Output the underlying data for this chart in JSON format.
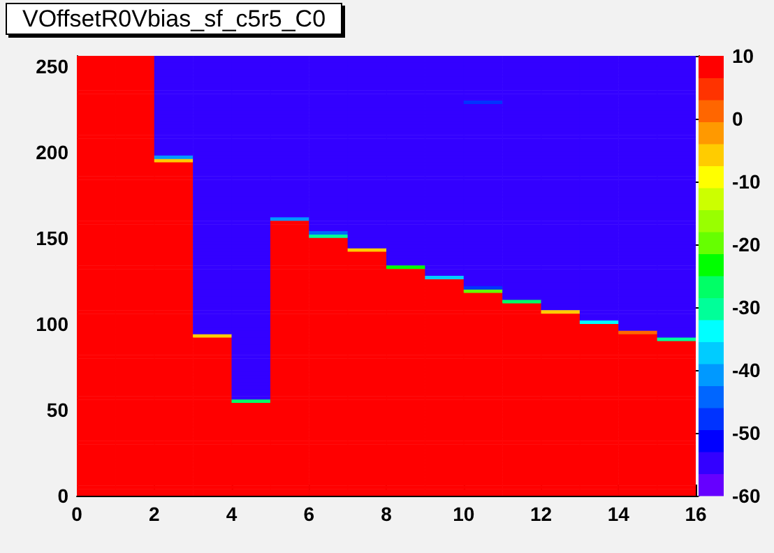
{
  "chart_data": {
    "type": "heatmap",
    "title": "VOffsetR0Vbias_sf_c5r5_C0",
    "xlim": [
      0,
      16
    ],
    "xticks": [
      0,
      2,
      4,
      6,
      8,
      10,
      12,
      14,
      16
    ],
    "ylim": [
      0,
      256
    ],
    "yticks": [
      0,
      50,
      100,
      150,
      200,
      250
    ],
    "clim": [
      -60,
      10
    ],
    "cticks": [
      -60,
      -50,
      -40,
      -30,
      -20,
      -10,
      0,
      10
    ],
    "colors": [
      "#6600ff",
      "#3300ff",
      "#0000ff",
      "#0033ff",
      "#0066ff",
      "#0099ff",
      "#00ccff",
      "#00ffff",
      "#00ff99",
      "#00ff66",
      "#00ff00",
      "#66ff00",
      "#99ff00",
      "#ccff00",
      "#ffff00",
      "#ffcc00",
      "#ff9900",
      "#ff6600",
      "#ff3300",
      "#ff0000"
    ],
    "cells": [
      [
        8,
        8,
        -55,
        -55,
        -55,
        -55,
        -55,
        -55,
        -55,
        -55,
        -55,
        -55,
        -55,
        -55,
        -55,
        -55
      ],
      [
        8,
        8,
        -55,
        -55,
        -55,
        -55,
        -55,
        -55,
        -55,
        -55,
        -55,
        -55,
        -55,
        -55,
        -55,
        -55
      ],
      [
        8,
        8,
        -55,
        -55,
        -55,
        -55,
        -55,
        -55,
        -55,
        -55,
        -55,
        -55,
        -55,
        -55,
        -55,
        -55
      ],
      [
        8,
        8,
        -55,
        -55,
        -55,
        -55,
        -55,
        -55,
        -55,
        -55,
        -55,
        -55,
        -55,
        -55,
        -55,
        -55
      ],
      [
        8,
        8,
        -55,
        -55,
        -55,
        -55,
        -55,
        -55,
        -55,
        -55,
        -55,
        -55,
        -55,
        -55,
        -55,
        -55
      ],
      [
        8,
        8,
        -55,
        -55,
        -55,
        -55,
        -55,
        -55,
        -55,
        -55,
        -55,
        -55,
        -55,
        -55,
        -55,
        -55
      ],
      [
        8,
        8,
        -55,
        -55,
        -55,
        -55,
        -55,
        -55,
        -55,
        -55,
        -55,
        -55,
        -55,
        -55,
        -55,
        -55
      ],
      [
        8,
        8,
        -55,
        -55,
        -55,
        -55,
        -55,
        -55,
        -55,
        -55,
        -55,
        -55,
        -55,
        -55,
        -55,
        -55
      ],
      [
        8,
        8,
        -55,
        -55,
        -55,
        -55,
        -55,
        -55,
        -55,
        -55,
        -55,
        -55,
        -55,
        -55,
        -55,
        -55
      ],
      [
        8,
        8,
        -55,
        -55,
        -55,
        -55,
        -55,
        -55,
        -55,
        -55,
        -55,
        -55,
        -55,
        -55,
        -55,
        -55
      ],
      [
        8,
        8,
        -55,
        -55,
        -55,
        -55,
        -55,
        -55,
        -55,
        -55,
        -55,
        -55,
        -55,
        -55,
        -55,
        -55
      ],
      [
        8,
        8,
        -55,
        -55,
        -55,
        -55,
        -55,
        -55,
        -55,
        -55,
        -55,
        -55,
        -55,
        -55,
        -55,
        -55
      ],
      [
        8,
        8,
        -55,
        -55,
        -55,
        -55,
        -55,
        -55,
        -55,
        -55,
        -55,
        -55,
        -55,
        -55,
        -55,
        -55
      ],
      [
        8,
        8,
        -55,
        -55,
        -55,
        -55,
        -55,
        -55,
        -55,
        -55,
        -48,
        -55,
        -55,
        -55,
        -55,
        -55
      ],
      [
        8,
        8,
        -55,
        -55,
        -55,
        -55,
        -55,
        -55,
        -55,
        -55,
        -55,
        -55,
        -55,
        -55,
        -55,
        -55
      ],
      [
        8,
        8,
        -55,
        -55,
        -55,
        -55,
        -55,
        -55,
        -55,
        -55,
        -55,
        -55,
        -55,
        -55,
        -55,
        -55
      ],
      [
        8,
        8,
        -55,
        -55,
        -55,
        -55,
        -55,
        -55,
        -55,
        -55,
        -55,
        -55,
        -55,
        -55,
        -55,
        -55
      ],
      [
        8,
        8,
        -55,
        -55,
        -55,
        -55,
        -55,
        -55,
        -55,
        -55,
        -55,
        -55,
        -55,
        -55,
        -55,
        -55
      ],
      [
        8,
        8,
        -55,
        -55,
        -55,
        -55,
        -55,
        -55,
        -55,
        -55,
        -55,
        -55,
        -55,
        -55,
        -55,
        -55
      ],
      [
        8,
        8,
        -55,
        -55,
        -55,
        -55,
        -55,
        -55,
        -55,
        -55,
        -55,
        -55,
        -55,
        -55,
        -55,
        -55
      ],
      [
        8,
        8,
        -55,
        -55,
        -55,
        -55,
        -55,
        -55,
        -55,
        -55,
        -55,
        -55,
        -55,
        -55,
        -55,
        -55
      ],
      [
        8,
        8,
        -55,
        -55,
        -55,
        -55,
        -55,
        -55,
        -55,
        -55,
        -55,
        -55,
        -55,
        -55,
        -55,
        -55
      ],
      [
        8,
        8,
        -55,
        -55,
        -55,
        -55,
        -55,
        -55,
        -55,
        -55,
        -55,
        -55,
        -55,
        -55,
        -55,
        -55
      ],
      [
        8,
        8,
        -55,
        -55,
        -55,
        -55,
        -55,
        -55,
        -55,
        -55,
        -55,
        -55,
        -55,
        -55,
        -55,
        -55
      ],
      [
        8,
        8,
        -55,
        -55,
        -55,
        -55,
        -55,
        -55,
        -55,
        -55,
        -55,
        -55,
        -55,
        -55,
        -55,
        -55
      ],
      [
        8,
        8,
        -55,
        -55,
        -55,
        -55,
        -55,
        -55,
        -55,
        -55,
        -55,
        -55,
        -55,
        -55,
        -55,
        -55
      ],
      [
        8,
        8,
        -55,
        -55,
        -55,
        -55,
        -55,
        -55,
        -55,
        -55,
        -55,
        -55,
        -55,
        -55,
        -55,
        -55
      ],
      [
        8,
        8,
        -55,
        -55,
        -55,
        -55,
        -55,
        -55,
        -55,
        -55,
        -55,
        -55,
        -55,
        -55,
        -55,
        -55
      ],
      [
        8,
        8,
        -55,
        -55,
        -55,
        -55,
        -55,
        -55,
        -55,
        -55,
        -55,
        -55,
        -55,
        -55,
        -55,
        -55
      ],
      [
        8,
        8,
        -42,
        -55,
        -55,
        -55,
        -55,
        -55,
        -55,
        -55,
        -55,
        -55,
        -55,
        -55,
        -55,
        -55
      ],
      [
        8,
        8,
        -6,
        -55,
        -55,
        -55,
        -55,
        -55,
        -55,
        -55,
        -55,
        -55,
        -55,
        -55,
        -55,
        -55
      ],
      [
        8,
        8,
        8,
        -55,
        -55,
        -55,
        -55,
        -55,
        -55,
        -55,
        -55,
        -55,
        -55,
        -55,
        -55,
        -55
      ],
      [
        8,
        8,
        8,
        -55,
        -55,
        -55,
        -55,
        -55,
        -55,
        -55,
        -55,
        -55,
        -55,
        -55,
        -55,
        -55
      ],
      [
        8,
        8,
        8,
        -55,
        -55,
        -55,
        -55,
        -55,
        -55,
        -55,
        -55,
        -55,
        -55,
        -55,
        -55,
        -55
      ],
      [
        8,
        8,
        8,
        -55,
        -55,
        -55,
        -55,
        -55,
        -55,
        -55,
        -55,
        -55,
        -55,
        -55,
        -55,
        -55
      ],
      [
        8,
        8,
        8,
        -55,
        -55,
        -55,
        -55,
        -55,
        -55,
        -55,
        -55,
        -55,
        -55,
        -55,
        -55,
        -55
      ],
      [
        8,
        8,
        8,
        -55,
        -55,
        -55,
        -55,
        -55,
        -55,
        -55,
        -55,
        -55,
        -55,
        -55,
        -55,
        -55
      ],
      [
        8,
        8,
        8,
        -55,
        -55,
        -55,
        -55,
        -55,
        -55,
        -55,
        -55,
        -55,
        -55,
        -55,
        -55,
        -55
      ],
      [
        8,
        8,
        8,
        -55,
        -55,
        -55,
        -55,
        -55,
        -55,
        -55,
        -55,
        -55,
        -55,
        -55,
        -55,
        -55
      ],
      [
        8,
        8,
        8,
        -55,
        -55,
        -55,
        -55,
        -55,
        -55,
        -55,
        -55,
        -55,
        -55,
        -55,
        -55,
        -55
      ],
      [
        8,
        8,
        8,
        -55,
        -55,
        -55,
        -55,
        -55,
        -55,
        -55,
        -55,
        -55,
        -55,
        -55,
        -55,
        -55
      ],
      [
        8,
        8,
        8,
        -55,
        -55,
        -55,
        -55,
        -55,
        -55,
        -55,
        -55,
        -55,
        -55,
        -55,
        -55,
        -55
      ],
      [
        8,
        8,
        8,
        -55,
        -55,
        -55,
        -55,
        -55,
        -55,
        -55,
        -55,
        -55,
        -55,
        -55,
        -55,
        -55
      ],
      [
        8,
        8,
        8,
        -55,
        -55,
        -55,
        -55,
        -55,
        -55,
        -55,
        -55,
        -55,
        -55,
        -55,
        -55,
        -55
      ],
      [
        8,
        8,
        8,
        -55,
        -55,
        -55,
        -55,
        -55,
        -55,
        -55,
        -55,
        -55,
        -55,
        -55,
        -55,
        -55
      ],
      [
        8,
        8,
        8,
        -55,
        -55,
        -55,
        -55,
        -55,
        -55,
        -55,
        -55,
        -55,
        -55,
        -55,
        -55,
        -55
      ],
      [
        8,
        8,
        8,
        -55,
        -55,
        -55,
        -55,
        -55,
        -55,
        -55,
        -55,
        -55,
        -55,
        -55,
        -55,
        -55
      ],
      [
        8,
        8,
        8,
        -55,
        -55,
        -42,
        -55,
        -55,
        -55,
        -55,
        -55,
        -55,
        -55,
        -55,
        -55,
        -55
      ],
      [
        8,
        8,
        8,
        -55,
        -55,
        8,
        -55,
        -55,
        -55,
        -55,
        -55,
        -55,
        -55,
        -55,
        -55,
        -55
      ],
      [
        8,
        8,
        8,
        -55,
        -55,
        8,
        -55,
        -55,
        -55,
        -55,
        -55,
        -55,
        -55,
        -55,
        -55,
        -55
      ],
      [
        8,
        8,
        8,
        -55,
        -55,
        8,
        -55,
        -55,
        -55,
        -55,
        -55,
        -55,
        -55,
        -55,
        -55,
        -55
      ],
      [
        8,
        8,
        8,
        -55,
        -55,
        8,
        -45,
        -55,
        -55,
        -55,
        -55,
        -55,
        -55,
        -55,
        -55,
        -55
      ],
      [
        8,
        8,
        8,
        -55,
        -55,
        8,
        -30,
        -55,
        -55,
        -55,
        -55,
        -55,
        -55,
        -55,
        -55,
        -55
      ],
      [
        8,
        8,
        8,
        -55,
        -55,
        8,
        8,
        -55,
        -55,
        -55,
        -55,
        -55,
        -55,
        -55,
        -55,
        -55
      ],
      [
        8,
        8,
        8,
        -55,
        -55,
        8,
        8,
        -55,
        -55,
        -55,
        -55,
        -55,
        -55,
        -55,
        -55,
        -55
      ],
      [
        8,
        8,
        8,
        -55,
        -55,
        8,
        8,
        -55,
        -55,
        -55,
        -55,
        -55,
        -55,
        -55,
        -55,
        -55
      ],
      [
        8,
        8,
        8,
        -55,
        -55,
        8,
        8,
        -6,
        -55,
        -55,
        -55,
        -55,
        -55,
        -55,
        -55,
        -55
      ],
      [
        8,
        8,
        8,
        -55,
        -55,
        8,
        8,
        8,
        -55,
        -55,
        -55,
        -55,
        -55,
        -55,
        -55,
        -55
      ],
      [
        8,
        8,
        8,
        -55,
        -55,
        8,
        8,
        8,
        -55,
        -55,
        -55,
        -55,
        -55,
        -55,
        -55,
        -55
      ],
      [
        8,
        8,
        8,
        -55,
        -55,
        8,
        8,
        8,
        -55,
        -55,
        -55,
        -55,
        -55,
        -55,
        -55,
        -55
      ],
      [
        8,
        8,
        8,
        -55,
        -55,
        8,
        8,
        8,
        -55,
        -55,
        -55,
        -55,
        -55,
        -55,
        -55,
        -55
      ],
      [
        8,
        8,
        8,
        -55,
        -55,
        8,
        8,
        8,
        -25,
        -55,
        -55,
        -55,
        -55,
        -55,
        -55,
        -55
      ],
      [
        8,
        8,
        8,
        -55,
        -55,
        8,
        8,
        8,
        8,
        -55,
        -55,
        -55,
        -55,
        -55,
        -55,
        -55
      ],
      [
        8,
        8,
        8,
        -55,
        -55,
        8,
        8,
        8,
        8,
        -55,
        -55,
        -55,
        -55,
        -55,
        -55,
        -55
      ],
      [
        8,
        8,
        8,
        -55,
        -55,
        8,
        8,
        8,
        8,
        -38,
        -55,
        -55,
        -55,
        -55,
        -55,
        -55
      ],
      [
        8,
        8,
        8,
        -55,
        -55,
        8,
        8,
        8,
        8,
        8,
        -55,
        -55,
        -55,
        -55,
        -55,
        -55
      ],
      [
        8,
        8,
        8,
        -55,
        -55,
        8,
        8,
        8,
        8,
        8,
        -55,
        -55,
        -55,
        -55,
        -55,
        -55
      ],
      [
        8,
        8,
        8,
        -55,
        -55,
        8,
        8,
        8,
        8,
        8,
        -48,
        -55,
        -55,
        -55,
        -55,
        -55
      ],
      [
        8,
        8,
        8,
        -55,
        -55,
        8,
        8,
        8,
        8,
        8,
        -20,
        -55,
        -55,
        -55,
        -55,
        -55
      ],
      [
        8,
        8,
        8,
        -55,
        -55,
        8,
        8,
        8,
        8,
        8,
        8,
        -55,
        -55,
        -55,
        -55,
        -55
      ],
      [
        8,
        8,
        8,
        -55,
        -55,
        8,
        8,
        8,
        8,
        8,
        8,
        -55,
        -55,
        -55,
        -55,
        -55
      ],
      [
        8,
        8,
        8,
        -55,
        -55,
        8,
        8,
        8,
        8,
        8,
        8,
        -28,
        -55,
        -55,
        -55,
        -55
      ],
      [
        8,
        8,
        8,
        -55,
        -55,
        8,
        8,
        8,
        8,
        8,
        8,
        8,
        -55,
        -55,
        -55,
        -55
      ],
      [
        8,
        8,
        8,
        -55,
        -55,
        8,
        8,
        8,
        8,
        8,
        8,
        8,
        -55,
        -55,
        -55,
        -55
      ],
      [
        8,
        8,
        8,
        -55,
        -55,
        8,
        8,
        8,
        8,
        8,
        8,
        8,
        -6,
        -55,
        -55,
        -55
      ],
      [
        8,
        8,
        8,
        -55,
        -55,
        8,
        8,
        8,
        8,
        8,
        8,
        8,
        8,
        -55,
        -55,
        -55
      ],
      [
        8,
        8,
        8,
        -55,
        -55,
        8,
        8,
        8,
        8,
        8,
        8,
        8,
        8,
        -55,
        -55,
        -55
      ],
      [
        8,
        8,
        8,
        -55,
        -55,
        8,
        8,
        8,
        8,
        8,
        8,
        8,
        8,
        -35,
        -55,
        -55
      ],
      [
        8,
        8,
        8,
        -55,
        -55,
        8,
        8,
        8,
        8,
        8,
        8,
        8,
        8,
        8,
        -55,
        -55
      ],
      [
        8,
        8,
        8,
        -55,
        -55,
        8,
        8,
        8,
        8,
        8,
        8,
        8,
        8,
        8,
        -55,
        -55
      ],
      [
        8,
        8,
        8,
        -55,
        -55,
        8,
        8,
        8,
        8,
        8,
        8,
        8,
        8,
        8,
        2,
        -55
      ],
      [
        8,
        8,
        8,
        -6,
        -55,
        8,
        8,
        8,
        8,
        8,
        8,
        8,
        8,
        8,
        8,
        -55
      ],
      [
        8,
        8,
        8,
        8,
        -55,
        8,
        8,
        8,
        8,
        8,
        8,
        8,
        8,
        8,
        8,
        -32
      ],
      [
        8,
        8,
        8,
        8,
        -55,
        8,
        8,
        8,
        8,
        8,
        8,
        8,
        8,
        8,
        8,
        8
      ],
      [
        8,
        8,
        8,
        8,
        -55,
        8,
        8,
        8,
        8,
        8,
        8,
        8,
        8,
        8,
        8,
        8
      ],
      [
        8,
        8,
        8,
        8,
        -55,
        8,
        8,
        8,
        8,
        8,
        8,
        8,
        8,
        8,
        8,
        8
      ],
      [
        8,
        8,
        8,
        8,
        -55,
        8,
        8,
        8,
        8,
        8,
        8,
        8,
        8,
        8,
        8,
        8
      ],
      [
        8,
        8,
        8,
        8,
        -55,
        8,
        8,
        8,
        8,
        8,
        8,
        8,
        8,
        8,
        8,
        8
      ],
      [
        8,
        8,
        8,
        8,
        -55,
        8,
        8,
        8,
        8,
        8,
        8,
        8,
        8,
        8,
        8,
        8
      ],
      [
        8,
        8,
        8,
        8,
        -55,
        8,
        8,
        8,
        8,
        8,
        8,
        8,
        8,
        8,
        8,
        8
      ],
      [
        8,
        8,
        8,
        8,
        -55,
        8,
        8,
        8,
        8,
        8,
        8,
        8,
        8,
        8,
        8,
        8
      ],
      [
        8,
        8,
        8,
        8,
        -55,
        8,
        8,
        8,
        8,
        8,
        8,
        8,
        8,
        8,
        8,
        8
      ],
      [
        8,
        8,
        8,
        8,
        -55,
        8,
        8,
        8,
        8,
        8,
        8,
        8,
        8,
        8,
        8,
        8
      ],
      [
        8,
        8,
        8,
        8,
        -55,
        8,
        8,
        8,
        8,
        8,
        8,
        8,
        8,
        8,
        8,
        8
      ],
      [
        8,
        8,
        8,
        8,
        -55,
        8,
        8,
        8,
        8,
        8,
        8,
        8,
        8,
        8,
        8,
        8
      ],
      [
        8,
        8,
        8,
        8,
        -55,
        8,
        8,
        8,
        8,
        8,
        8,
        8,
        8,
        8,
        8,
        8
      ],
      [
        8,
        8,
        8,
        8,
        -55,
        8,
        8,
        8,
        8,
        8,
        8,
        8,
        8,
        8,
        8,
        8
      ],
      [
        8,
        8,
        8,
        8,
        -55,
        8,
        8,
        8,
        8,
        8,
        8,
        8,
        8,
        8,
        8,
        8
      ],
      [
        8,
        8,
        8,
        8,
        -55,
        8,
        8,
        8,
        8,
        8,
        8,
        8,
        8,
        8,
        8,
        8
      ],
      [
        8,
        8,
        8,
        8,
        -55,
        8,
        8,
        8,
        8,
        8,
        8,
        8,
        8,
        8,
        8,
        8
      ],
      [
        8,
        8,
        8,
        8,
        -28,
        8,
        8,
        8,
        8,
        8,
        8,
        8,
        8,
        8,
        8,
        8
      ],
      [
        8,
        8,
        8,
        8,
        8,
        8,
        8,
        8,
        8,
        8,
        8,
        8,
        8,
        8,
        8,
        8
      ],
      [
        8,
        8,
        8,
        8,
        8,
        8,
        8,
        8,
        8,
        8,
        8,
        8,
        8,
        8,
        8,
        8
      ],
      [
        8,
        8,
        8,
        8,
        8,
        8,
        8,
        8,
        8,
        8,
        8,
        8,
        8,
        8,
        8,
        8
      ],
      [
        8,
        8,
        8,
        8,
        8,
        8,
        8,
        8,
        8,
        8,
        8,
        8,
        8,
        8,
        8,
        8
      ],
      [
        8,
        8,
        8,
        8,
        8,
        8,
        8,
        8,
        8,
        8,
        8,
        8,
        8,
        8,
        8,
        8
      ],
      [
        8,
        8,
        8,
        8,
        8,
        8,
        8,
        8,
        8,
        8,
        8,
        8,
        8,
        8,
        8,
        8
      ],
      [
        8,
        8,
        8,
        8,
        8,
        8,
        8,
        8,
        8,
        8,
        8,
        8,
        8,
        8,
        8,
        8
      ],
      [
        8,
        8,
        8,
        8,
        8,
        8,
        8,
        8,
        8,
        8,
        8,
        8,
        8,
        8,
        8,
        8
      ],
      [
        8,
        8,
        8,
        8,
        8,
        8,
        8,
        8,
        8,
        8,
        8,
        8,
        8,
        8,
        8,
        8
      ],
      [
        8,
        8,
        8,
        8,
        8,
        8,
        8,
        8,
        8,
        8,
        8,
        8,
        8,
        8,
        8,
        8
      ],
      [
        8,
        8,
        8,
        8,
        8,
        8,
        8,
        8,
        8,
        8,
        8,
        8,
        8,
        8,
        8,
        8
      ],
      [
        8,
        8,
        8,
        8,
        8,
        8,
        8,
        8,
        8,
        8,
        8,
        8,
        8,
        8,
        8,
        8
      ],
      [
        8,
        8,
        8,
        8,
        8,
        8,
        8,
        8,
        8,
        8,
        8,
        8,
        8,
        8,
        8,
        8
      ],
      [
        8,
        8,
        8,
        8,
        8,
        8,
        8,
        8,
        8,
        8,
        8,
        8,
        8,
        8,
        8,
        8
      ],
      [
        8,
        8,
        8,
        8,
        8,
        8,
        8,
        8,
        8,
        8,
        8,
        8,
        8,
        8,
        8,
        8
      ],
      [
        8,
        8,
        8,
        8,
        8,
        8,
        8,
        8,
        8,
        8,
        8,
        8,
        8,
        8,
        8,
        8
      ],
      [
        8,
        8,
        8,
        8,
        8,
        8,
        8,
        8,
        8,
        8,
        8,
        8,
        8,
        8,
        8,
        8
      ],
      [
        8,
        8,
        8,
        8,
        8,
        8,
        8,
        8,
        8,
        8,
        8,
        8,
        8,
        8,
        8,
        8
      ],
      [
        8,
        8,
        8,
        8,
        8,
        8,
        8,
        8,
        8,
        8,
        8,
        8,
        8,
        8,
        8,
        8
      ],
      [
        8,
        8,
        8,
        8,
        8,
        8,
        8,
        8,
        8,
        8,
        8,
        8,
        8,
        8,
        8,
        8
      ],
      [
        8,
        8,
        8,
        8,
        8,
        8,
        8,
        8,
        8,
        8,
        8,
        8,
        8,
        8,
        8,
        8
      ],
      [
        8,
        8,
        8,
        8,
        8,
        8,
        8,
        8,
        8,
        8,
        8,
        8,
        8,
        8,
        8,
        8
      ],
      [
        8,
        8,
        8,
        8,
        8,
        8,
        8,
        8,
        8,
        8,
        8,
        8,
        8,
        8,
        8,
        8
      ],
      [
        8,
        8,
        8,
        8,
        8,
        8,
        8,
        8,
        8,
        8,
        8,
        8,
        8,
        8,
        8,
        8
      ],
      [
        8,
        8,
        8,
        8,
        8,
        8,
        8,
        8,
        8,
        8,
        8,
        8,
        8,
        8,
        8,
        8
      ],
      [
        8,
        8,
        8,
        8,
        8,
        8,
        8,
        8,
        8,
        8,
        8,
        8,
        8,
        8,
        8,
        8
      ],
      [
        8,
        8,
        8,
        8,
        8,
        8,
        8,
        8,
        8,
        8,
        8,
        8,
        8,
        8,
        8,
        8
      ]
    ]
  }
}
